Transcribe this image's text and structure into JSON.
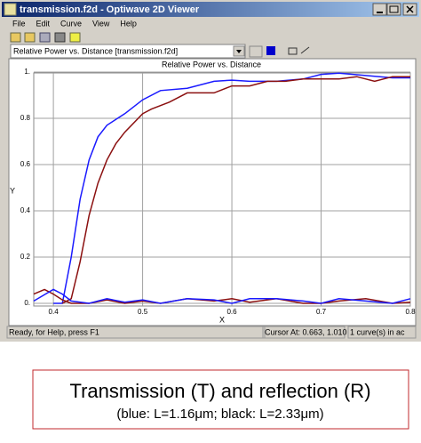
{
  "window": {
    "title": "transmission.f2d - Optiwave 2D Viewer",
    "menu": [
      "File",
      "Edit",
      "Curve",
      "View",
      "Help"
    ],
    "dropdown": "Relative Power vs. Distance [transmission.f2d]",
    "status": [
      "Ready, for Help, press F1",
      "Cursor At: 0.663, 1.010",
      "1 curve(s) in ac"
    ]
  },
  "chart_data": {
    "type": "line",
    "title": "Relative Power vs. Distance",
    "x_label": "X",
    "y_label": "Y",
    "xlim": [
      0.378,
      0.8
    ],
    "ylim": [
      0,
      1
    ],
    "xticks": [
      0.4,
      0.5,
      0.6,
      0.7,
      0.8
    ],
    "yticks": [
      {
        "value": 0,
        "label": "0."
      },
      0.2,
      0.4,
      0.6,
      0.8,
      {
        "value": 1,
        "label": "1."
      }
    ],
    "grid": true,
    "series": [
      {
        "color": "#1a1aff",
        "x": [
          0.4,
          0.41,
          0.42,
          0.43,
          0.44,
          0.45,
          0.46,
          0.48,
          0.5,
          0.52,
          0.55,
          0.58,
          0.6,
          0.62,
          0.65,
          0.68,
          0.7,
          0.72,
          0.75,
          0.78,
          0.8
        ],
        "values": [
          0,
          0,
          0.2,
          0.45,
          0.62,
          0.72,
          0.77,
          0.82,
          0.88,
          0.92,
          0.93,
          0.96,
          0.965,
          0.96,
          0.96,
          0.97,
          0.99,
          0.995,
          0.985,
          0.975,
          0.975
        ]
      },
      {
        "color": "#8b1010",
        "x": [
          0.41,
          0.42,
          0.43,
          0.44,
          0.45,
          0.46,
          0.47,
          0.48,
          0.5,
          0.51,
          0.53,
          0.55,
          0.58,
          0.6,
          0.62,
          0.64,
          0.66,
          0.68,
          0.7,
          0.72,
          0.74,
          0.76,
          0.78,
          0.8
        ],
        "values": [
          0,
          0.02,
          0.18,
          0.38,
          0.52,
          0.62,
          0.69,
          0.74,
          0.82,
          0.84,
          0.87,
          0.91,
          0.91,
          0.94,
          0.94,
          0.96,
          0.96,
          0.97,
          0.97,
          0.97,
          0.98,
          0.96,
          0.98,
          0.98
        ]
      },
      {
        "color": "#8b1010",
        "x": [
          0.378,
          0.39,
          0.4,
          0.41,
          0.42,
          0.44,
          0.46,
          0.48,
          0.5,
          0.52,
          0.55,
          0.58,
          0.6,
          0.62,
          0.65,
          0.68,
          0.7,
          0.72,
          0.75,
          0.78,
          0.8
        ],
        "values": [
          0.04,
          0.06,
          0.04,
          0.015,
          0,
          0,
          0.015,
          0,
          0.01,
          0,
          0.02,
          0.01,
          0.02,
          0.005,
          0.02,
          0,
          0,
          0.01,
          0.02,
          0,
          0.005
        ]
      },
      {
        "color": "#1a1aff",
        "x": [
          0.378,
          0.4,
          0.41,
          0.42,
          0.44,
          0.46,
          0.48,
          0.5,
          0.52,
          0.55,
          0.58,
          0.6,
          0.62,
          0.65,
          0.68,
          0.7,
          0.72,
          0.75,
          0.78,
          0.8
        ],
        "values": [
          0.01,
          0.06,
          0.04,
          0.01,
          0,
          0.02,
          0.005,
          0.015,
          0,
          0.02,
          0.015,
          0,
          0.02,
          0.02,
          0.01,
          0,
          0.02,
          0.01,
          0,
          0.02
        ]
      }
    ]
  },
  "caption": {
    "title": "Transmission (T) and reflection (R)",
    "subtitle": "(blue: L=1.16μm; black: L=2.33μm)"
  }
}
